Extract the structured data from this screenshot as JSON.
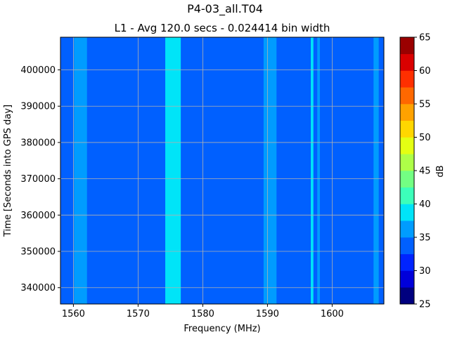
{
  "chart_data": {
    "type": "heatmap",
    "title": "P4-03_all.T04",
    "subtitle": "L1 - Avg 120.0 secs - 0.024414 bin width",
    "xlabel": "Frequency (MHz)",
    "ylabel": "Time [Seconds into GPS day]",
    "xlim": [
      1558,
      1608
    ],
    "ylim": [
      335500,
      409000
    ],
    "x_ticks": [
      1560,
      1570,
      1580,
      1590,
      1600
    ],
    "y_ticks": [
      340000,
      350000,
      360000,
      370000,
      380000,
      390000,
      400000
    ],
    "grid": true,
    "background_level_db": 33.5,
    "bands": [
      {
        "center_mhz": 1561.1,
        "halfwidth_mhz": 1.0,
        "level_db": 37
      },
      {
        "center_mhz": 1575.4,
        "halfwidth_mhz": 1.2,
        "level_db": 38
      },
      {
        "center_mhz": 1590.4,
        "halfwidth_mhz": 1.0,
        "level_db": 37
      },
      {
        "center_mhz": 1596.9,
        "halfwidth_mhz": 0.2,
        "level_db": 38
      },
      {
        "center_mhz": 1597.9,
        "halfwidth_mhz": 0.2,
        "level_db": 37
      },
      {
        "center_mhz": 1606.8,
        "halfwidth_mhz": 0.4,
        "level_db": 37
      }
    ],
    "colorbar": {
      "label": "dB",
      "min": 25,
      "max": 65,
      "step": 2.5,
      "ticks": [
        25,
        30,
        35,
        40,
        45,
        50,
        55,
        60,
        65
      ],
      "colors": [
        "#00007f",
        "#0000da",
        "#0024ff",
        "#0060ff",
        "#009cff",
        "#00e4f8",
        "#3cffba",
        "#73ff83",
        "#aeff48",
        "#e4ff13",
        "#ffd700",
        "#ffa200",
        "#ff6800",
        "#ff2f00",
        "#da0000",
        "#9a0000"
      ]
    }
  }
}
